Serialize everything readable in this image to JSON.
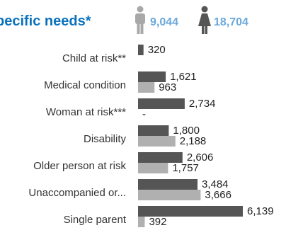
{
  "header": {
    "title": "pecific needs*"
  },
  "legend": [
    {
      "name": "male-icon",
      "value": "9,044",
      "color": "#a8a8a8"
    },
    {
      "name": "female-icon",
      "value": "18,704",
      "color": "#555555"
    }
  ],
  "colors": {
    "title": "#0a72bd",
    "legend_text": "#6aa8dc",
    "series_1": "#555555",
    "series_2": "#b0b0b0"
  },
  "chart_data": {
    "type": "bar",
    "orientation": "horizontal",
    "categories": [
      "Child at risk**",
      "Medical condition",
      "Woman at risk***",
      "Disability",
      "Older person at risk",
      "Unaccompanied or...",
      "Single parent"
    ],
    "series": [
      {
        "values": [
          320,
          1621,
          2734,
          1800,
          2606,
          3484,
          6139
        ]
      },
      {
        "values": [
          null,
          963,
          null,
          2188,
          1757,
          3666,
          392
        ]
      }
    ],
    "value_labels": [
      [
        "320",
        "1,621",
        "2,734",
        "1,800",
        "2,606",
        "3,484",
        "6,139"
      ],
      [
        "",
        "963",
        "-",
        "2,188",
        "1,757",
        "3,666",
        "392"
      ]
    ],
    "xlim": [
      0,
      6139
    ],
    "grid": false,
    "legend": "top"
  }
}
